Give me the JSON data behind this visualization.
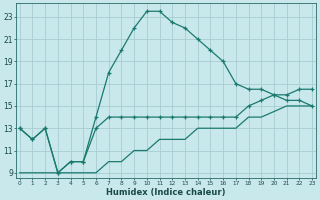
{
  "background_color": "#c8e8ec",
  "grid_color": "#a8ccd4",
  "line_color": "#1a7a6e",
  "x_values": [
    0,
    1,
    2,
    3,
    4,
    5,
    6,
    7,
    8,
    9,
    10,
    11,
    12,
    13,
    14,
    15,
    16,
    17,
    18,
    19,
    20,
    21,
    22,
    23
  ],
  "line1": [
    13,
    12,
    13,
    9,
    10,
    10,
    14,
    18,
    20,
    22,
    23.5,
    23.5,
    22.5,
    22,
    21,
    20,
    19,
    17,
    16.5,
    16.5,
    16,
    15.5,
    15.5,
    15
  ],
  "line2": [
    13,
    12,
    13,
    9,
    10,
    10,
    13,
    14,
    14,
    14,
    14,
    14,
    14,
    14,
    14,
    14,
    14,
    14,
    15,
    15.5,
    16,
    16,
    16.5,
    16.5
  ],
  "line3": [
    9,
    9,
    9,
    9,
    9,
    9,
    9,
    10,
    10,
    11,
    11,
    12,
    12,
    12,
    13,
    13,
    13,
    13,
    14,
    14,
    14.5,
    15,
    15,
    15
  ],
  "ylim": [
    8.5,
    24.2
  ],
  "yticks": [
    9,
    11,
    13,
    15,
    17,
    19,
    21,
    23
  ],
  "xlim": [
    -0.3,
    23.3
  ],
  "xlabel": "Humidex (Indice chaleur)",
  "figw": 3.2,
  "figh": 2.0,
  "dpi": 100
}
